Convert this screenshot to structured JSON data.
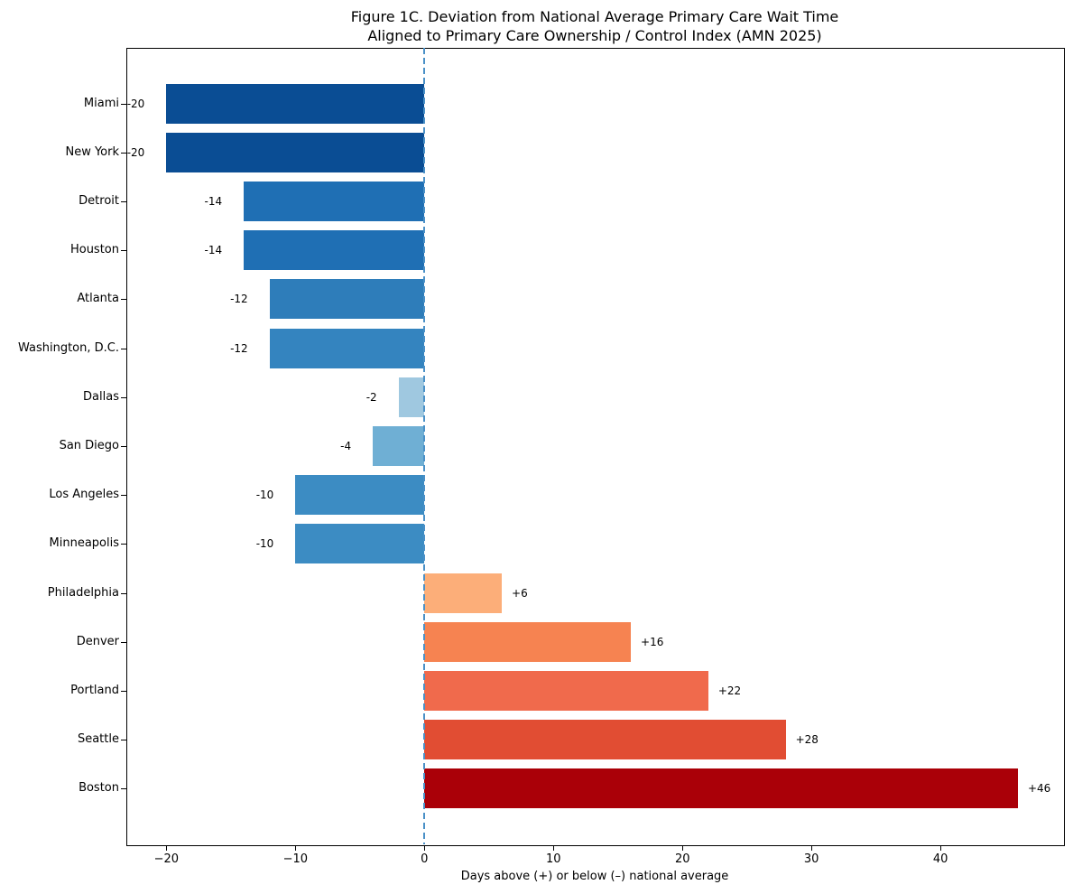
{
  "chart_data": {
    "type": "bar",
    "orientation": "horizontal",
    "title": "Figure 1C. Deviation from National Average Primary Care Wait Time",
    "subtitle": "Aligned to Primary Care Ownership / Control Index (AMN 2025)",
    "xlabel": "Days above (+) or below (–) national average",
    "categories": [
      "Miami",
      "New York",
      "Detroit",
      "Houston",
      "Atlanta",
      "Washington, D.C.",
      "Dallas",
      "San Diego",
      "Los Angeles",
      "Minneapolis",
      "Philadelphia",
      "Denver",
      "Portland",
      "Seattle",
      "Boston"
    ],
    "values": [
      -20,
      -20,
      -14,
      -14,
      -12,
      -12,
      -2,
      -4,
      -10,
      -10,
      6,
      16,
      22,
      28,
      46
    ],
    "value_labels": [
      "-20",
      "-20",
      "-14",
      "-14",
      "-12",
      "-12",
      "-2",
      "-4",
      "-10",
      "-10",
      "+6",
      "+16",
      "+22",
      "+28",
      "+46"
    ],
    "bar_colors": [
      "#0a4d94",
      "#0a4d94",
      "#1f6fb4",
      "#1f6fb4",
      "#2e7dba",
      "#3484bf",
      "#9fc8e0",
      "#6fafd4",
      "#3c8cc3",
      "#3c8cc3",
      "#fcae79",
      "#f68351",
      "#f06a4c",
      "#e14d33",
      "#aa0008"
    ],
    "xlim": [
      -23.1,
      49.5
    ],
    "xticks": [
      -20,
      -10,
      0,
      10,
      20,
      30,
      40
    ],
    "xtick_labels": [
      "−20",
      "−10",
      "0",
      "10",
      "20",
      "30",
      "40"
    ],
    "zero_line": {
      "x": 0,
      "color": "#4a90c7",
      "style": "dashed"
    },
    "grid": false,
    "legend": false,
    "axis_color": "#000000",
    "background_color": "#ffffff"
  }
}
